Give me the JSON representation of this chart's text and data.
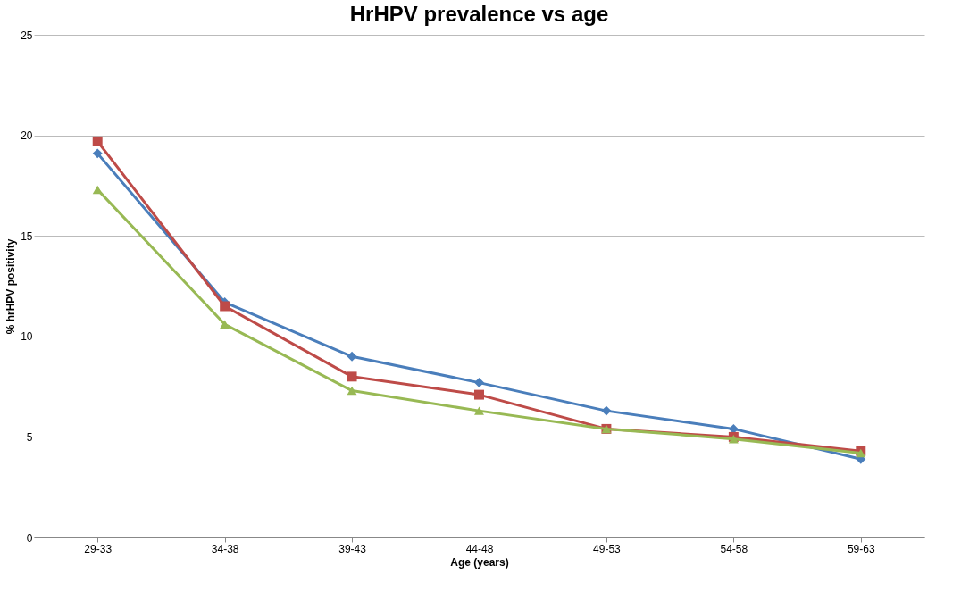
{
  "chart_data": {
    "type": "line",
    "title": "HrHPV prevalence vs age",
    "xlabel": "Age (years)",
    "ylabel": "% hrHPV positivity",
    "categories": [
      "29-33",
      "34-38",
      "39-43",
      "44-48",
      "49-53",
      "54-58",
      "59-63"
    ],
    "ylim": [
      0,
      25
    ],
    "yticks": [
      0,
      5,
      10,
      15,
      20,
      25
    ],
    "grid": "y",
    "series": [
      {
        "color": "#4a7ebb",
        "marker": "diamond",
        "values": [
          19.1,
          11.7,
          9.0,
          7.7,
          6.3,
          5.4,
          3.9
        ]
      },
      {
        "color": "#be4b48",
        "marker": "square",
        "values": [
          19.7,
          11.5,
          8.0,
          7.1,
          5.4,
          5.0,
          4.3
        ]
      },
      {
        "color": "#98b954",
        "marker": "triangle",
        "values": [
          17.3,
          10.6,
          7.3,
          6.3,
          5.4,
          4.9,
          4.2
        ]
      }
    ]
  }
}
